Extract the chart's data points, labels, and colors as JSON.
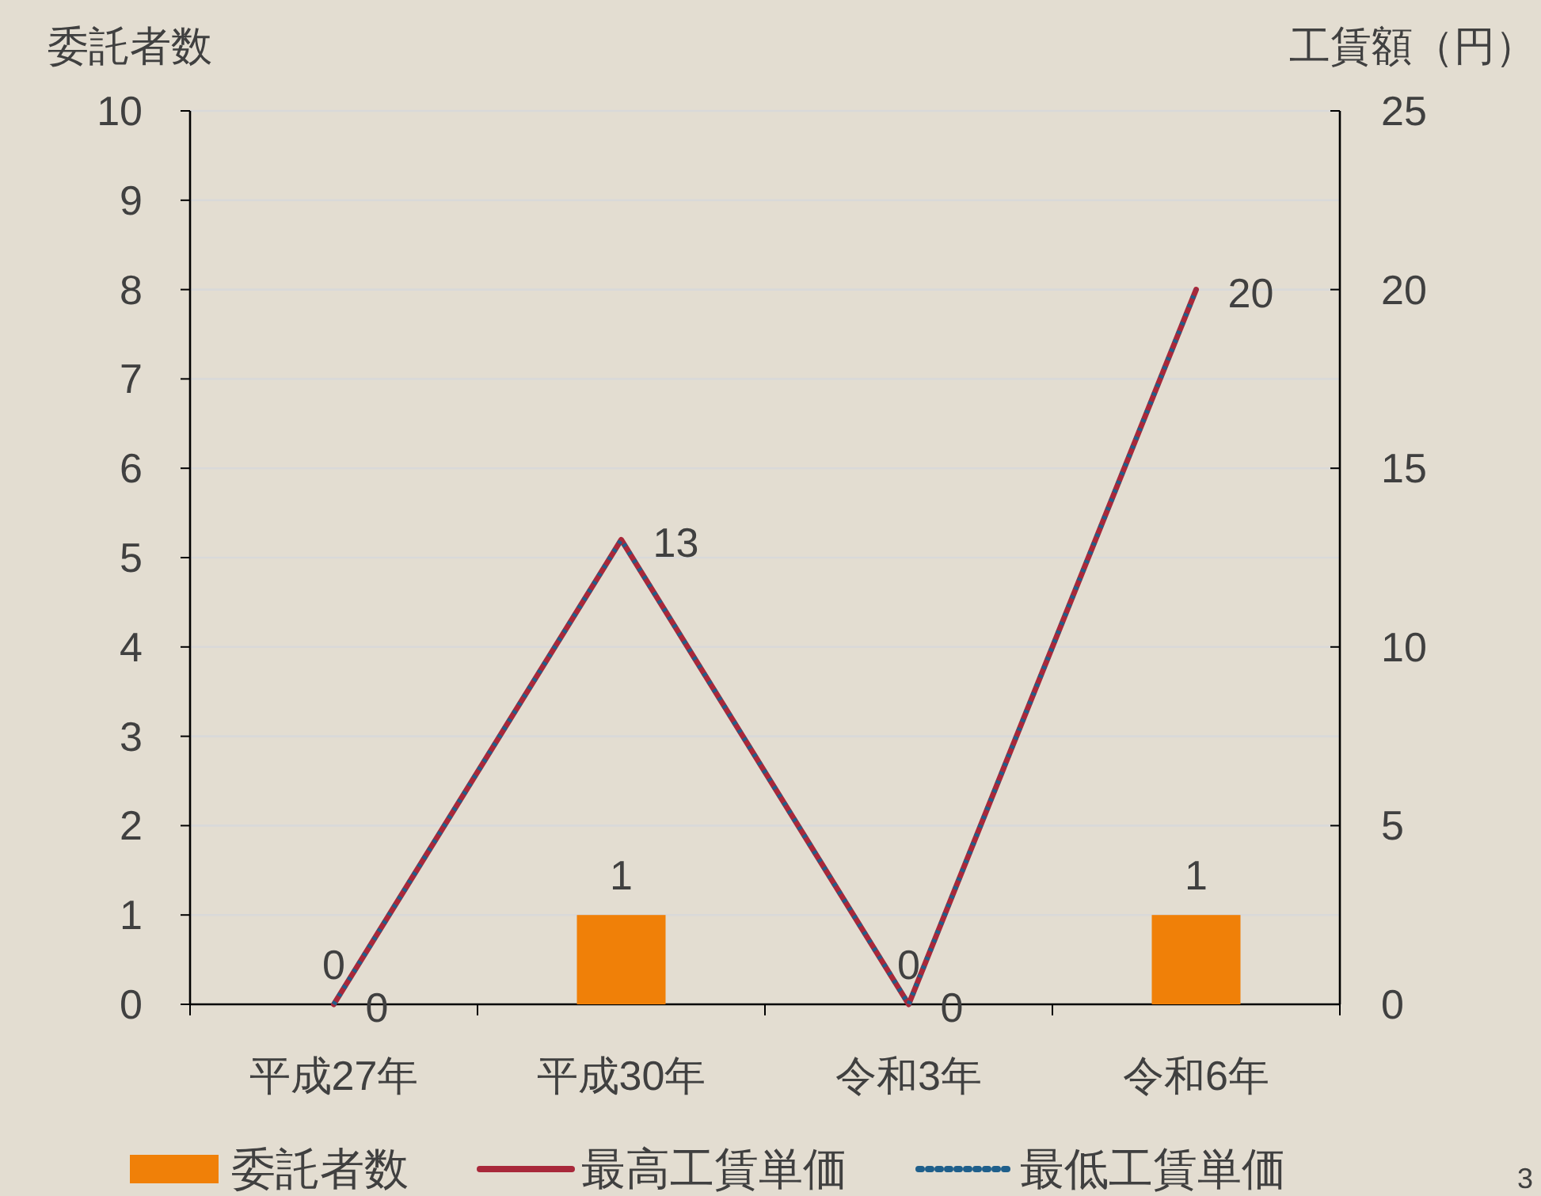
{
  "chart_data": {
    "type": "bar",
    "ylabel": "委託者数",
    "y2label": "工賃額（円）",
    "categories": [
      "平成27年",
      "平成30年",
      "令和3年",
      "令和6年"
    ],
    "series": [
      {
        "name": "委託者数",
        "color": "#f08008",
        "values": [
          0,
          1,
          0,
          1
        ]
      },
      {
        "name": "最高工賃単価",
        "type": "line",
        "axis": "y2",
        "color": "#a8283a",
        "line_style": "solid",
        "values": [
          0,
          13,
          0,
          20
        ]
      },
      {
        "name": "最低工賃単価",
        "type": "line",
        "axis": "y2",
        "color": "#1f5f8b",
        "line_style": "dotted",
        "values": [
          0,
          13,
          0,
          20
        ],
        "value_labels": [
          null,
          null,
          null,
          null
        ]
      }
    ],
    "ylim": [
      0,
      10
    ],
    "yticks": [
      0,
      1,
      2,
      3,
      4,
      5,
      6,
      7,
      8,
      9,
      10
    ],
    "y2lim": [
      0,
      25
    ],
    "y2ticks": [
      0,
      5,
      10,
      15,
      20,
      25
    ],
    "grid": "y",
    "legend": "bottom",
    "data_labels": true,
    "marker": "none",
    "annotations": [
      "3"
    ]
  }
}
